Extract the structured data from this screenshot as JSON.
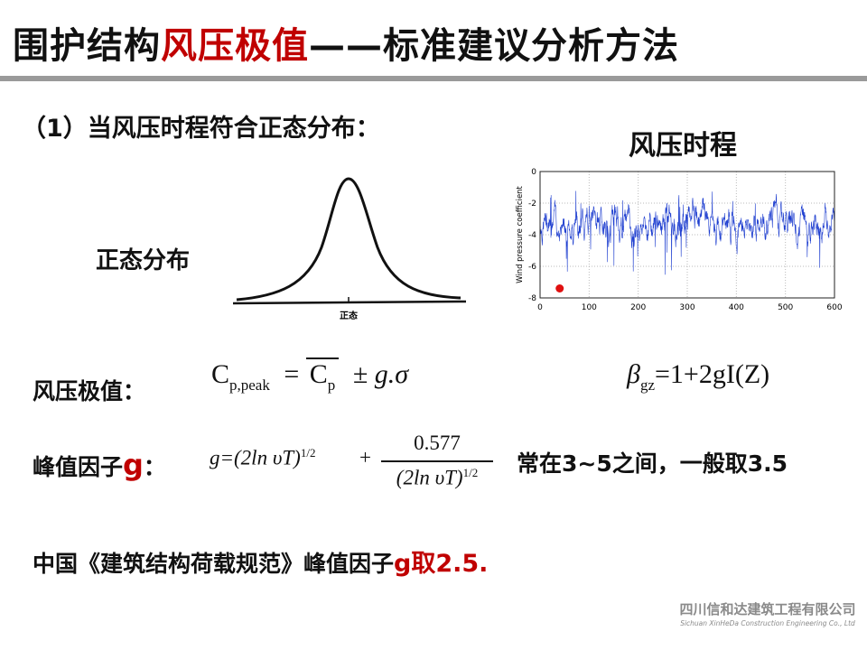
{
  "slide": {
    "title_main": "围护结构",
    "title_highlight": "风压极值",
    "title_rest": "——标准建议分析方法",
    "subheading": "（1）当风压时程符合正态分布：",
    "normal_label": "正态分布",
    "normal_axis_label": "正态",
    "timeseries_title": "风压时程",
    "peak_label": "风压极值：",
    "gust_label_main": "峰值因子",
    "gust_label_g": "g",
    "gust_label_colon": "：",
    "g_note": "常在3~5之间，一般取3.5",
    "china_main": "中国《建筑结构荷载规范》峰值因子",
    "china_highlight": "g取2.5.",
    "logo_cn": "四川信和达建筑工程有限公司",
    "logo_en": "Sichuan XinHeDa Construction Engineering Co., Ltd"
  },
  "formulas": {
    "peak_C": "C",
    "peak_sub": "p,peak",
    "peak_eq": "=",
    "peak_C2": "C",
    "peak_sub2": "p",
    "peak_tail": "± g.σ",
    "beta": "β",
    "beta_sub": "gz",
    "beta_rhs": "=1+2gI(Z)",
    "g_lhs": "g=(2ln υT)",
    "g_exp": "1/2",
    "g_plus": "+",
    "g_num": "0.577",
    "g_den": "(2ln υT)",
    "g_den_exp": "1/2"
  },
  "chart_data": {
    "type": "line",
    "title": "",
    "xlabel": "",
    "ylabel": "Wind pressure coefficient",
    "xlim": [
      0,
      600
    ],
    "ylim": [
      -8,
      0
    ],
    "x_ticks": [
      "0",
      "100",
      "200",
      "300",
      "400",
      "500",
      "600"
    ],
    "y_ticks": [
      "0",
      "-2",
      "-4",
      "-6",
      "-8"
    ],
    "grid": true,
    "series": [
      {
        "color": "#1f3fd0",
        "mean": -3.2,
        "min": -6.7,
        "max": -1.2
      }
    ],
    "marker": {
      "x": 40,
      "y": -7.4,
      "color": "#e01010"
    }
  }
}
